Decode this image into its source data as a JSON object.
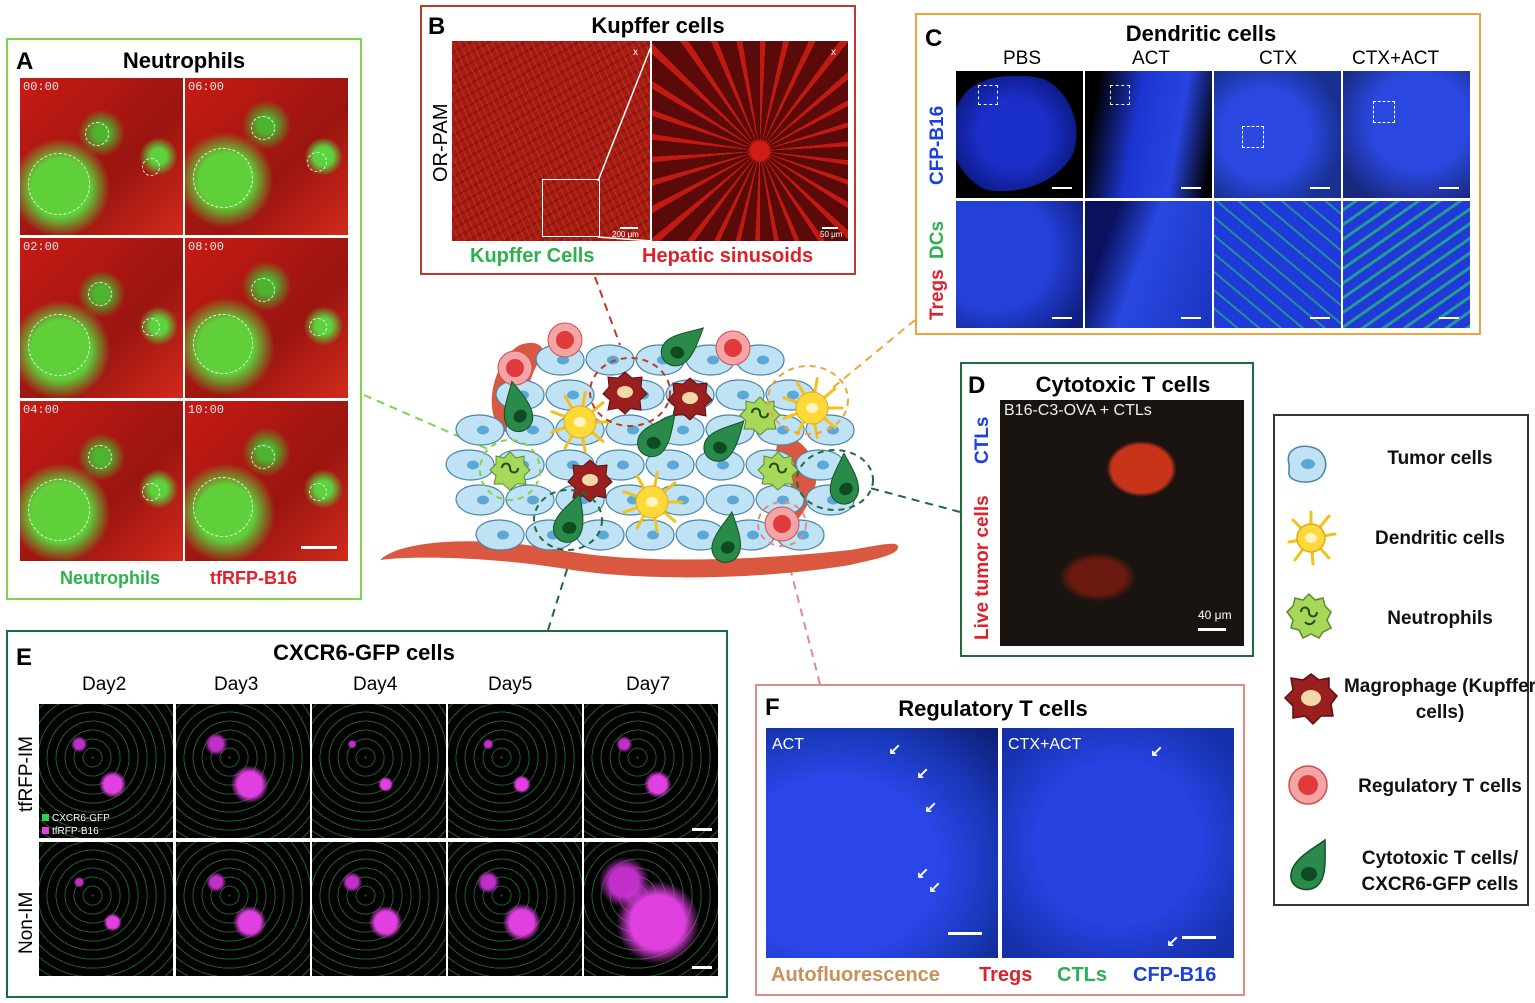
{
  "panel_a": {
    "letter": "A",
    "title": "Neutrophils",
    "timestamps": [
      "00:00",
      "06:00",
      "02:00",
      "08:00",
      "04:00",
      "10:00"
    ],
    "label_green": "Neutrophils",
    "label_red": "tfRFP-B16",
    "border_color": "#7fd44c"
  },
  "panel_b": {
    "letter": "B",
    "title": "Kupffer cells",
    "side_label": "OR-PAM",
    "scale_left": "200 μm",
    "scale_right": "50 μm",
    "axis_x": "x",
    "axis_y": "y",
    "label_green": "Kupffer Cells",
    "label_red": "Hepatic sinusoids",
    "border_color": "#c0392b"
  },
  "panel_c": {
    "letter": "C",
    "title": "Dendritic cells",
    "columns": [
      "PBS",
      "ACT",
      "CTX",
      "CTX+ACT"
    ],
    "row_label_top": "CFP-B16",
    "row_label_mid": "DCs",
    "row_label_bot": "Tregs",
    "border_color": "#f0a43c"
  },
  "panel_d": {
    "letter": "D",
    "title": "Cytotoxic T cells",
    "image_label": "B16-C3-OVA + CTLs",
    "side_label_blue": "CTLs",
    "side_label_red": "Live tumor cells",
    "scale": "40 μm",
    "border_color": "#1e6b3c"
  },
  "panel_e": {
    "letter": "E",
    "title": "CXCR6-GFP cells",
    "columns": [
      "Day2",
      "Day3",
      "Day4",
      "Day5",
      "Day7"
    ],
    "rows": [
      "tfRFP-IM",
      "Non-IM"
    ],
    "legend_green": "CXCR6-GFP",
    "legend_magenta": "tfRFP-B16",
    "border_color": "#1e6b3c"
  },
  "panel_f": {
    "letter": "F",
    "title": "Regulatory T cells",
    "left_label": "ACT",
    "right_label": "CTX+ACT",
    "bottom_labels": {
      "auto": "Autofluorescence",
      "tregs": "Tregs",
      "ctls": "CTLs",
      "cfp": "CFP-B16"
    },
    "border_color": "#e08a8a"
  },
  "legend": {
    "items": [
      {
        "icon": "tumor-cell-icon",
        "label": "Tumor cells"
      },
      {
        "icon": "dendritic-cell-icon",
        "label": "Dendritic cells"
      },
      {
        "icon": "neutrophil-icon",
        "label": "Neutrophils"
      },
      {
        "icon": "macrophage-icon",
        "label": "Magrophage (Kupffer cells)"
      },
      {
        "icon": "regulatory-t-cell-icon",
        "label": "Regulatory T cells"
      },
      {
        "icon": "cytotoxic-t-cell-icon",
        "label": "Cytotoxic T cells/ CXCR6-GFP cells"
      }
    ]
  },
  "colors": {
    "green_text": "#2bb24c",
    "red_text": "#e0202a",
    "blue_text": "#1a3fe0",
    "orange_text": "#c8915a",
    "vessel": "#d9583f",
    "tumor_cell": "#bfe3f4"
  }
}
